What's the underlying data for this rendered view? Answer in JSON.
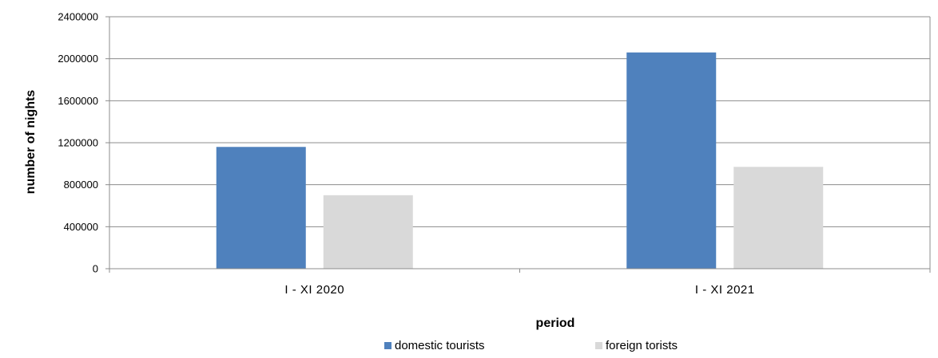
{
  "chart_data": {
    "type": "bar",
    "title": "",
    "xlabel": "period",
    "ylabel": "number of nights",
    "categories": [
      "I - XI  2020",
      "I - XI  2021"
    ],
    "series": [
      {
        "name": "domestic tourists",
        "values": [
          1160000,
          2060000
        ],
        "color": "#4F81BD"
      },
      {
        "name": "foreign torists",
        "values": [
          700000,
          970000
        ],
        "color": "#D9D9D9"
      }
    ],
    "ylim": [
      0,
      2400000
    ],
    "yticks": [
      0,
      400000,
      800000,
      1200000,
      1600000,
      2000000,
      2400000
    ],
    "grid": true,
    "legend_position": "bottom"
  }
}
